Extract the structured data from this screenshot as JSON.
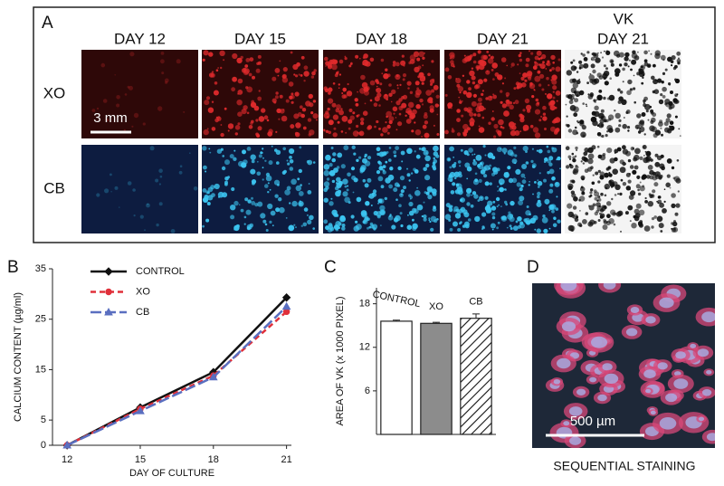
{
  "panel_a": {
    "label": "A",
    "vk_label": "VK",
    "columns": [
      "DAY 12",
      "DAY 15",
      "DAY 18",
      "DAY 21",
      "DAY 21"
    ],
    "rows": [
      "XO",
      "CB"
    ],
    "scale": "3 mm"
  },
  "chart_data": [
    {
      "type": "line",
      "panel": "B",
      "x_label": "DAY OF CULTURE",
      "y_label": "CALCIUM CONTENT (µg/ml)",
      "x": [
        12,
        15,
        18,
        21
      ],
      "xlim": [
        11.4,
        21.2
      ],
      "xticks": [
        12,
        15,
        18,
        21
      ],
      "ylim": [
        0,
        35
      ],
      "yticks": [
        0,
        5,
        15,
        25,
        35
      ],
      "series": [
        {
          "name": "CONTROL",
          "color": "#111111",
          "marker": "diamond",
          "dash": "solid",
          "values": [
            0,
            7.5,
            14.5,
            29.3
          ]
        },
        {
          "name": "XO",
          "color": "#e0303a",
          "marker": "circle",
          "dash": "dash",
          "values": [
            0,
            7.2,
            13.8,
            26.5
          ]
        },
        {
          "name": "CB",
          "color": "#5a6fc0",
          "marker": "triangle",
          "dash": "longdash",
          "values": [
            0,
            6.8,
            13.5,
            27.5
          ]
        }
      ]
    },
    {
      "type": "bar",
      "panel": "C",
      "y_label": "AREA OF VK (x 1000 PIXEL)",
      "categories": [
        "CONTROL",
        "XO",
        "CB"
      ],
      "values": [
        15.6,
        15.3,
        16.0
      ],
      "errors": [
        0.15,
        0.15,
        0.6
      ],
      "colors": [
        "#ffffff",
        "#8c8c8c",
        "#ffffff"
      ],
      "patterns": [
        "solid",
        "solid",
        "hatch"
      ],
      "ylim": [
        0,
        20.2
      ],
      "yticks": [
        6,
        12,
        18
      ]
    }
  ],
  "panel_d": {
    "label": "D",
    "scale": "500 µm",
    "caption": "SEQUENTIAL STAINING"
  }
}
